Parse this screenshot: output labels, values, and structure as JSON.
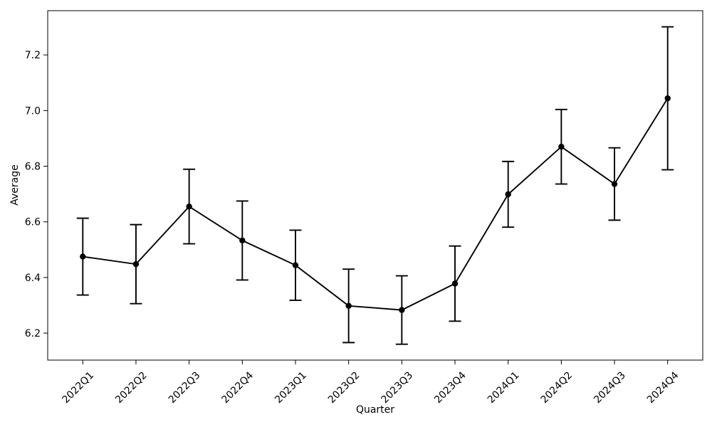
{
  "figure": {
    "background": "#ffffff",
    "line_color": "#000000",
    "marker_color": "#000000",
    "text_color": "#000000"
  },
  "chart_data": {
    "type": "line",
    "title": "",
    "xlabel": "Quarter",
    "ylabel": "Average",
    "categories": [
      "2022Q1",
      "2022Q2",
      "2022Q3",
      "2022Q4",
      "2023Q1",
      "2023Q2",
      "2023Q3",
      "2023Q4",
      "2024Q1",
      "2024Q2",
      "2024Q3",
      "2024Q4"
    ],
    "series": [
      {
        "name": "Average",
        "values": [
          6.475,
          6.448,
          6.655,
          6.533,
          6.444,
          6.298,
          6.283,
          6.378,
          6.699,
          6.87,
          6.736,
          7.044
        ],
        "errors": [
          0.138,
          0.142,
          0.134,
          0.142,
          0.126,
          0.132,
          0.123,
          0.135,
          0.118,
          0.134,
          0.13,
          0.257
        ]
      }
    ],
    "marker": "circle",
    "error_bars": true,
    "grid": false,
    "legend_position": "none",
    "ylim": [
      6.103,
      7.359
    ],
    "yticks": [
      6.2,
      6.4,
      6.6,
      6.8,
      7.0,
      7.2
    ],
    "x_tick_rotation_deg": 45
  }
}
